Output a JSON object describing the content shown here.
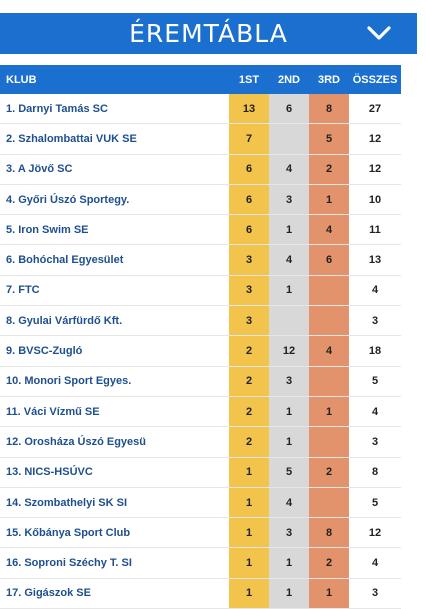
{
  "header": {
    "title": "ÉREMTÁBLA",
    "toggle_icon": "chevron-down-icon"
  },
  "colors": {
    "blue": "#1a6fcf",
    "gold": "#f2c44c",
    "silver": "#d8d8d8",
    "bronze": "#e3936b",
    "club_text": "#1e4f8f"
  },
  "table": {
    "columns": {
      "club": "KLUB",
      "first": "1ST",
      "second": "2ND",
      "third": "3RD",
      "total": "ÖSSZES"
    },
    "rows": [
      {
        "club": "1. Darnyi Tamás SC",
        "first": "13",
        "second": "6",
        "third": "8",
        "total": "27"
      },
      {
        "club": "2. Szhalombattai VUK SE",
        "first": "7",
        "second": "",
        "third": "5",
        "total": "12"
      },
      {
        "club": "3. A Jövő SC",
        "first": "6",
        "second": "4",
        "third": "2",
        "total": "12"
      },
      {
        "club": "4. Győri Úszó Sportegy.",
        "first": "6",
        "second": "3",
        "third": "1",
        "total": "10"
      },
      {
        "club": "5. Iron Swim SE",
        "first": "6",
        "second": "1",
        "third": "4",
        "total": "11"
      },
      {
        "club": "6. Bohóchal Egyesület",
        "first": "3",
        "second": "4",
        "third": "6",
        "total": "13"
      },
      {
        "club": "7. FTC",
        "first": "3",
        "second": "1",
        "third": "",
        "total": "4"
      },
      {
        "club": "8. Gyulai Várfürdő Kft.",
        "first": "3",
        "second": "",
        "third": "",
        "total": "3"
      },
      {
        "club": "9. BVSC-Zugló",
        "first": "2",
        "second": "12",
        "third": "4",
        "total": "18"
      },
      {
        "club": "10. Monori Sport Egyes.",
        "first": "2",
        "second": "3",
        "third": "",
        "total": "5"
      },
      {
        "club": "11. Váci Vízmű SE",
        "first": "2",
        "second": "1",
        "third": "1",
        "total": "4"
      },
      {
        "club": "12. Orosháza Úszó Egyesü",
        "first": "2",
        "second": "1",
        "third": "",
        "total": "3"
      },
      {
        "club": "13. NICS-HSÚVC",
        "first": "1",
        "second": "5",
        "third": "2",
        "total": "8"
      },
      {
        "club": "14. Szombathelyi SK SI",
        "first": "1",
        "second": "4",
        "third": "",
        "total": "5"
      },
      {
        "club": "15. Kőbánya Sport Club",
        "first": "1",
        "second": "3",
        "third": "8",
        "total": "12"
      },
      {
        "club": "16. Soproni Széchy T. SI",
        "first": "1",
        "second": "1",
        "third": "2",
        "total": "4"
      },
      {
        "club": "17. Gigászok SE",
        "first": "1",
        "second": "1",
        "third": "1",
        "total": "3"
      }
    ]
  }
}
